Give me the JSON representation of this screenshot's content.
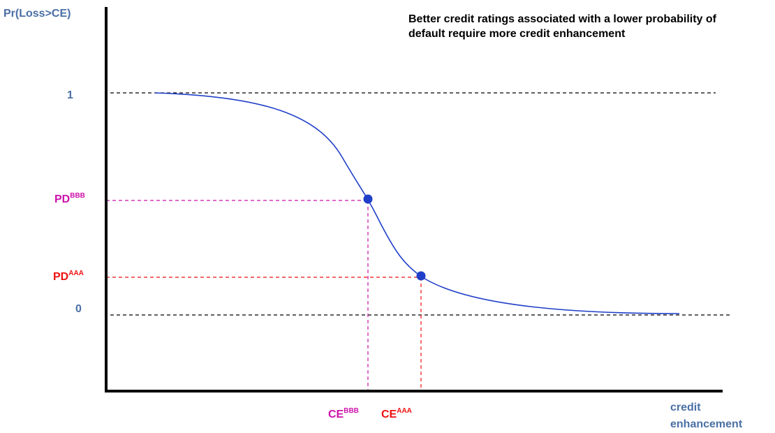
{
  "y_axis_label": "Pr(Loss>CE)",
  "y_labels": {
    "top": "1",
    "bottom": "0"
  },
  "pd_bbb": {
    "main": "PD",
    "sup": "BBB"
  },
  "pd_aaa": {
    "main": "PD",
    "sup": "AAA"
  },
  "ce_bbb": {
    "main": "CE",
    "sup": "BBB"
  },
  "ce_aaa": {
    "main": "CE",
    "sup": "AAA"
  },
  "x_axis_label": {
    "lines": [
      "credit",
      "enhancement"
    ]
  },
  "annotation": "Better credit ratings associated with a lower probability of default require more credit enhancement"
}
